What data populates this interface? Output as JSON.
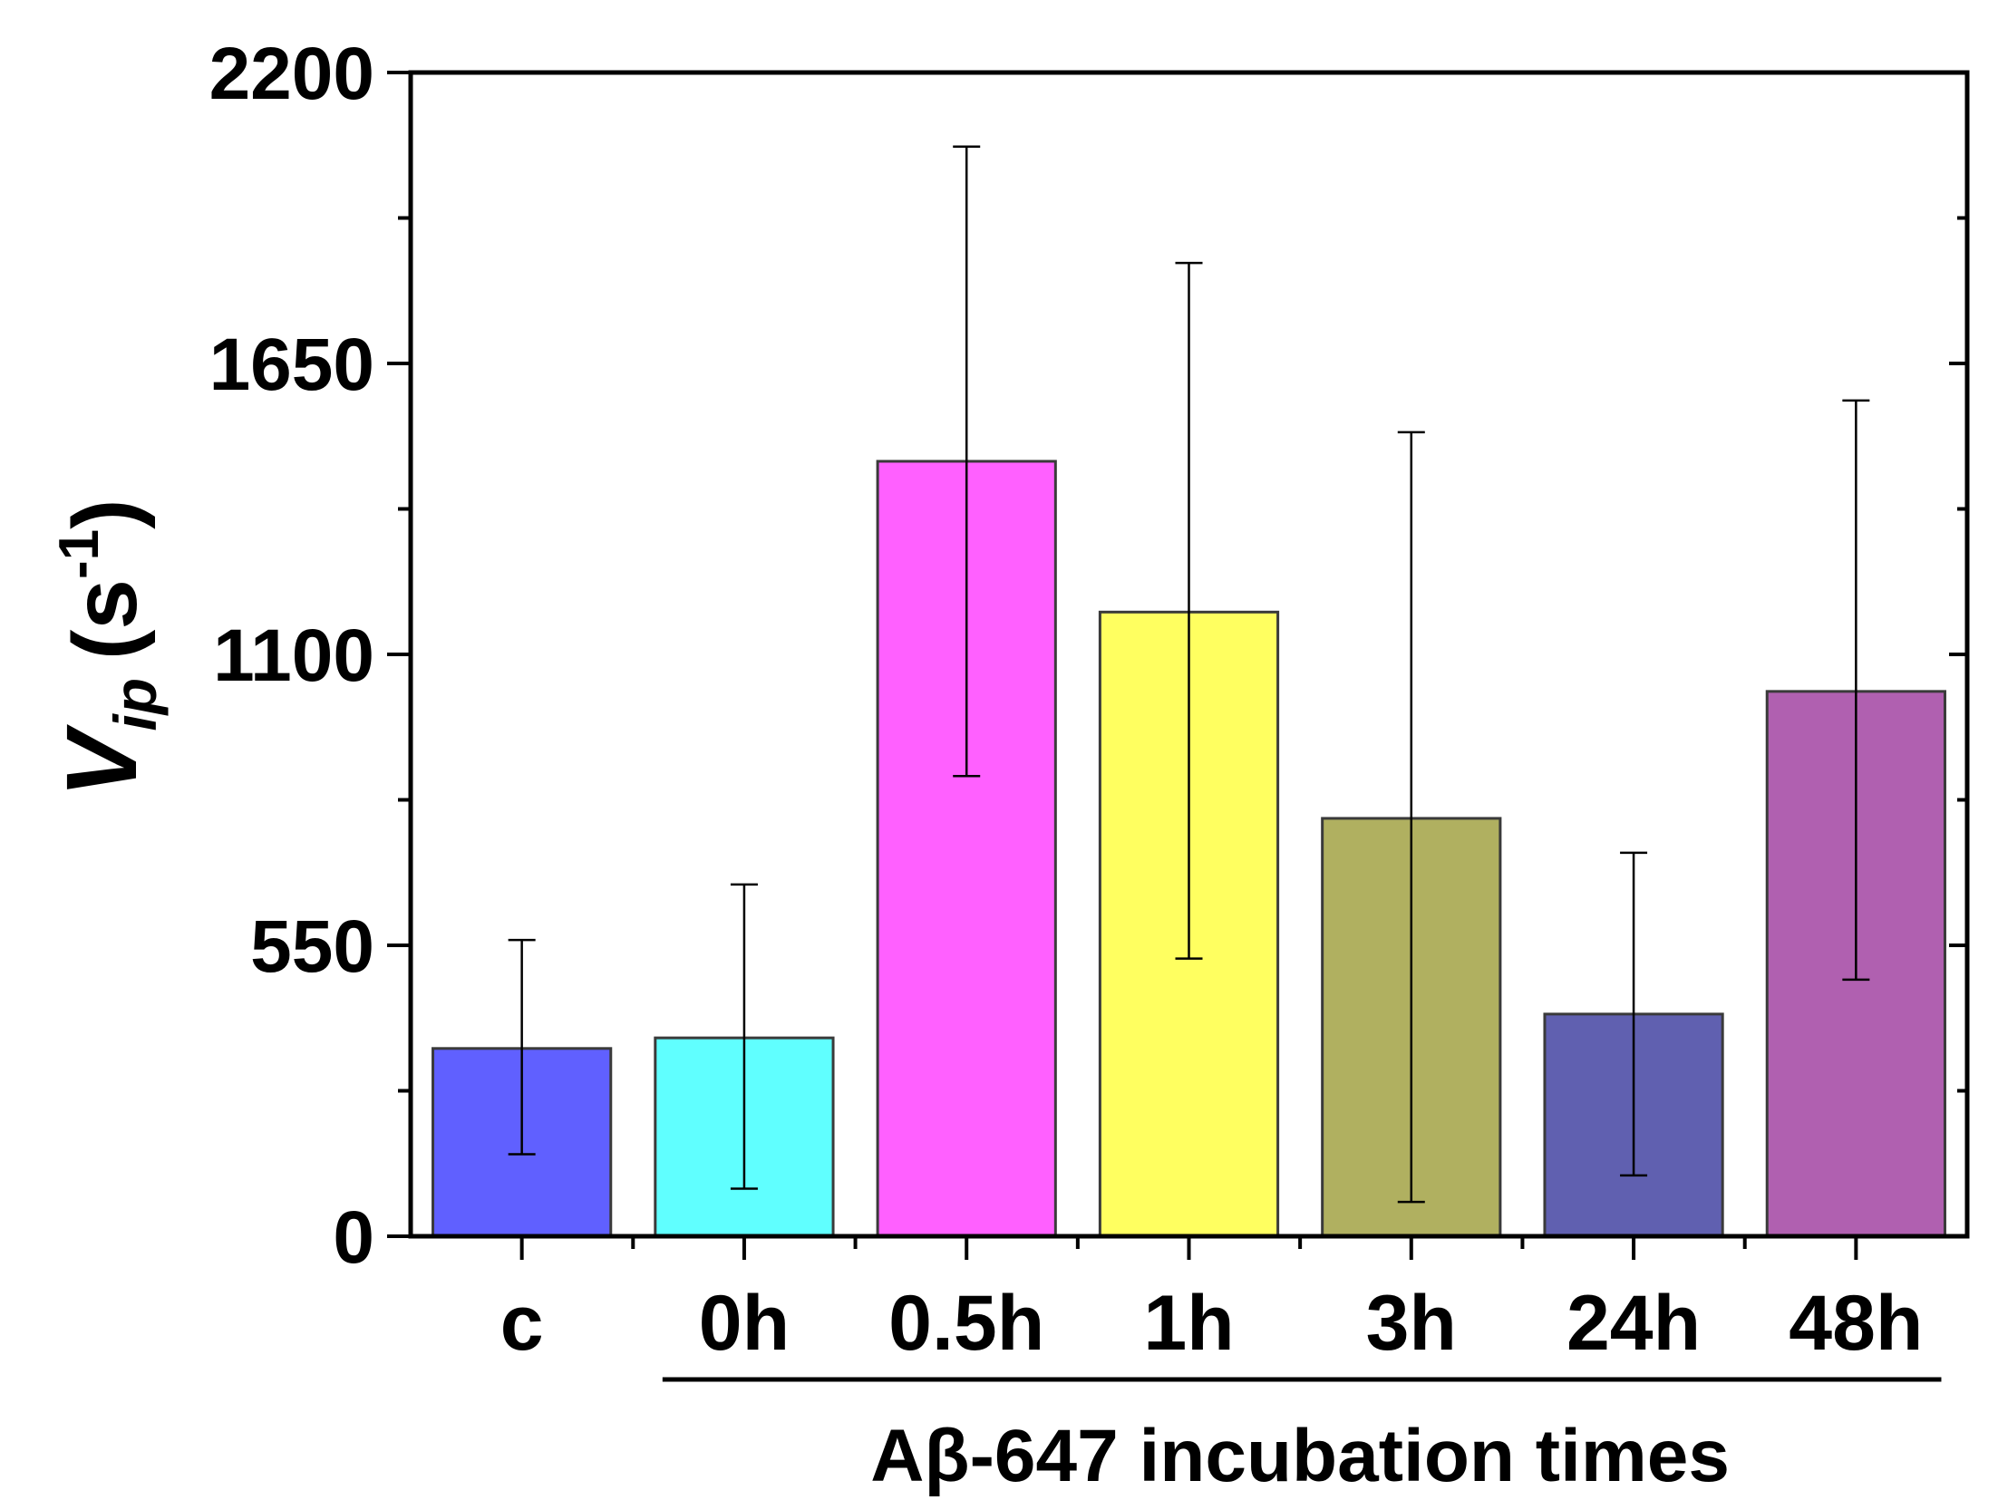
{
  "chart_data": {
    "type": "bar",
    "title": "",
    "xlabel": "Aβ-647 incubation times",
    "ylabel": {
      "main": "V",
      "sub": "ip",
      "unit_open": "(s",
      "unit_sup": "-1",
      "unit_close": ")"
    },
    "ylim": [
      0,
      2200
    ],
    "yticks": [
      0,
      550,
      1100,
      1650,
      2200
    ],
    "yticks_minor": [
      275,
      825,
      1375,
      1925
    ],
    "categories": [
      "c",
      "0h",
      "0.5h",
      "1h",
      "3h",
      "24h",
      "48h"
    ],
    "values": [
      355,
      375,
      1465,
      1180,
      790,
      420,
      1030
    ],
    "error_high": [
      560,
      665,
      2060,
      1840,
      1520,
      725,
      1580
    ],
    "error_low": [
      155,
      90,
      870,
      525,
      65,
      115,
      485
    ],
    "colors": [
      "#6060ff",
      "#60ffff",
      "#ff60ff",
      "#ffff60",
      "#b0b060",
      "#6060b0",
      "#b060b0"
    ],
    "bracket_range": [
      "0h",
      "48h"
    ]
  }
}
